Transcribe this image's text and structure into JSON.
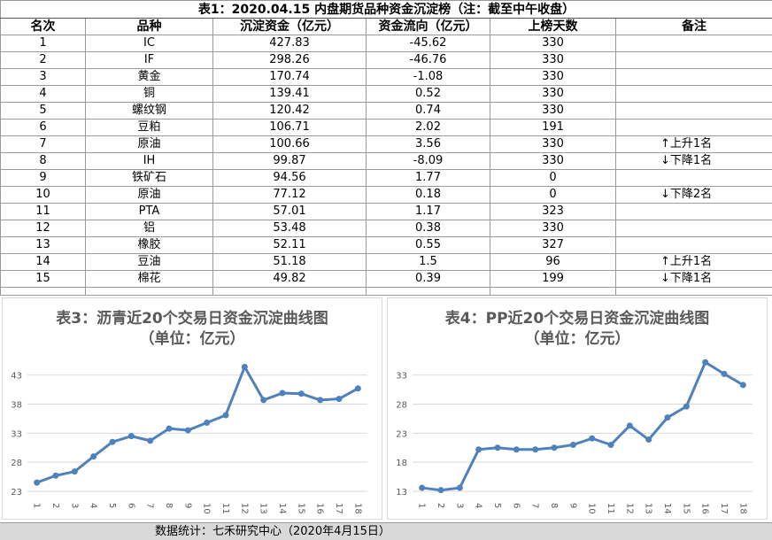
{
  "table": {
    "title": "表1：2020.04.15 内盘期货品种资金沉淀榜（注：截至中午收盘）",
    "headers": [
      "名次",
      "品种",
      "沉淀资金（亿元）",
      "资金流向（亿元）",
      "上榜天数",
      "备注"
    ],
    "rows": [
      [
        "1",
        "IC",
        "427.83",
        "-45.62",
        "330",
        null
      ],
      [
        "2",
        "IF",
        "298.26",
        "-46.76",
        "330",
        null
      ],
      [
        "3",
        "黄金",
        "170.74",
        "-1.08",
        "330",
        null
      ],
      [
        "4",
        "铜",
        "139.41",
        "0.52",
        "330",
        null
      ],
      [
        "5",
        "螺纹钢",
        "120.42",
        "0.74",
        "330",
        null
      ],
      [
        "6",
        "豆粕",
        "106.71",
        "2.02",
        "191",
        null
      ],
      [
        "7",
        "原油",
        "100.66",
        "3.56",
        "330",
        "↑上升1名"
      ],
      [
        "8",
        "IH",
        "99.87",
        "-8.09",
        "330",
        "↓下降1名"
      ],
      [
        "9",
        "铁矿石",
        "94.56",
        "1.77",
        "0",
        null
      ],
      [
        "10",
        "原油",
        "77.12",
        "0.18",
        "0",
        "↓下降2名"
      ],
      [
        "11",
        "PTA",
        "57.01",
        "1.17",
        "323",
        null
      ],
      [
        "12",
        "铝",
        "53.48",
        "0.38",
        "330",
        null
      ],
      [
        "13",
        "橡胶",
        "52.11",
        "0.55",
        "327",
        null
      ],
      [
        "14",
        "豆油",
        "51.18",
        "1.5",
        "96",
        "↑上升1名"
      ],
      [
        "15",
        "棉花",
        "49.82",
        "0.39",
        "199",
        "↓下降1名"
      ]
    ]
  },
  "chart_data": [
    {
      "type": "line",
      "title": "表3：沥青近20个交易日资金沉淀曲线图",
      "subtitle": "（单位：亿元）",
      "categories": [
        "1",
        "2",
        "3",
        "4",
        "5",
        "6",
        "7",
        "8",
        "9",
        "10",
        "11",
        "12",
        "13",
        "14",
        "15",
        "16",
        "17",
        "18"
      ],
      "values": [
        24.5,
        25.7,
        26.4,
        29.0,
        31.5,
        32.5,
        31.7,
        33.8,
        33.5,
        34.8,
        36.1,
        44.4,
        38.7,
        39.9,
        39.8,
        38.7,
        38.9,
        40.7
      ],
      "color": "#4f81bd",
      "ylim": [
        23,
        46
      ],
      "yticks": [
        23,
        28,
        33,
        38,
        43
      ],
      "grid": true
    },
    {
      "type": "line",
      "title": "表4：PP近20个交易日资金沉淀曲线图",
      "subtitle": "（单位：亿元）",
      "categories": [
        "1",
        "2",
        "3",
        "4",
        "5",
        "6",
        "7",
        "8",
        "9",
        "10",
        "11",
        "12",
        "13",
        "14",
        "15",
        "16",
        "17",
        "18"
      ],
      "values": [
        13.6,
        13.2,
        13.6,
        20.2,
        20.5,
        20.2,
        20.2,
        20.5,
        21.0,
        22.1,
        21.0,
        24.3,
        21.9,
        25.7,
        27.6,
        35.2,
        33.2,
        31.3
      ],
      "color": "#4f81bd",
      "ylim": [
        13,
        36
      ],
      "yticks": [
        13,
        18,
        23,
        28,
        33
      ],
      "grid": true
    }
  ],
  "footer": "数据统计：七禾研究中心（2020年4月15日）"
}
